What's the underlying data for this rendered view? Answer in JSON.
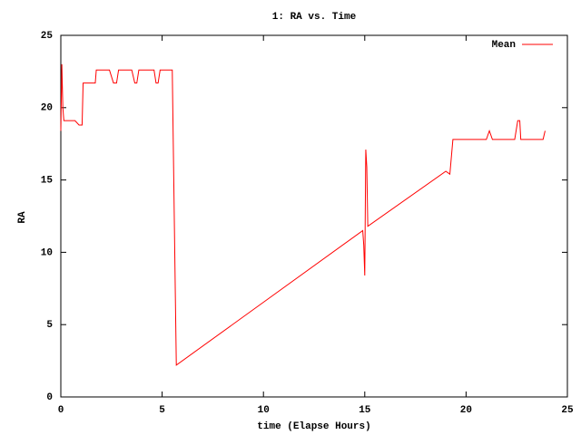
{
  "chart_data": {
    "type": "line",
    "title": "1: RA vs. Time",
    "x_label": "time (Elapse Hours)",
    "y_label": "RA",
    "xlim": [
      0,
      25
    ],
    "ylim": [
      0,
      25
    ],
    "xticks": [
      0,
      5,
      10,
      15,
      20,
      25
    ],
    "yticks": [
      0,
      5,
      10,
      15,
      20,
      25
    ],
    "legend": "top-right",
    "series": [
      {
        "name": "Mean",
        "color": "#ff0000",
        "x": [
          0,
          0.05,
          0.1,
          0.15,
          0.7,
          0.9,
          1.05,
          1.1,
          1.7,
          1.75,
          2.4,
          2.6,
          2.75,
          2.85,
          3.5,
          3.65,
          3.75,
          3.85,
          4.6,
          4.7,
          4.8,
          4.9,
          5.5,
          5.55,
          5.65,
          5.7,
          14.9,
          14.95,
          15.0,
          15.05,
          15.1,
          15.15,
          19.0,
          19.2,
          19.35,
          21.0,
          21.15,
          21.3,
          22.4,
          22.55,
          22.65,
          22.7,
          23.8,
          23.9
        ],
        "values": [
          18.4,
          23.0,
          20.0,
          19.1,
          19.1,
          18.8,
          18.8,
          21.7,
          21.7,
          22.6,
          22.6,
          21.7,
          21.7,
          22.6,
          22.6,
          21.7,
          21.7,
          22.6,
          22.6,
          21.7,
          21.7,
          22.6,
          22.6,
          17.5,
          7.2,
          2.2,
          11.5,
          10.5,
          8.4,
          17.1,
          15.9,
          11.8,
          15.6,
          15.4,
          17.8,
          17.8,
          18.4,
          17.8,
          17.8,
          19.1,
          19.1,
          17.8,
          17.8,
          18.4
        ]
      }
    ]
  }
}
